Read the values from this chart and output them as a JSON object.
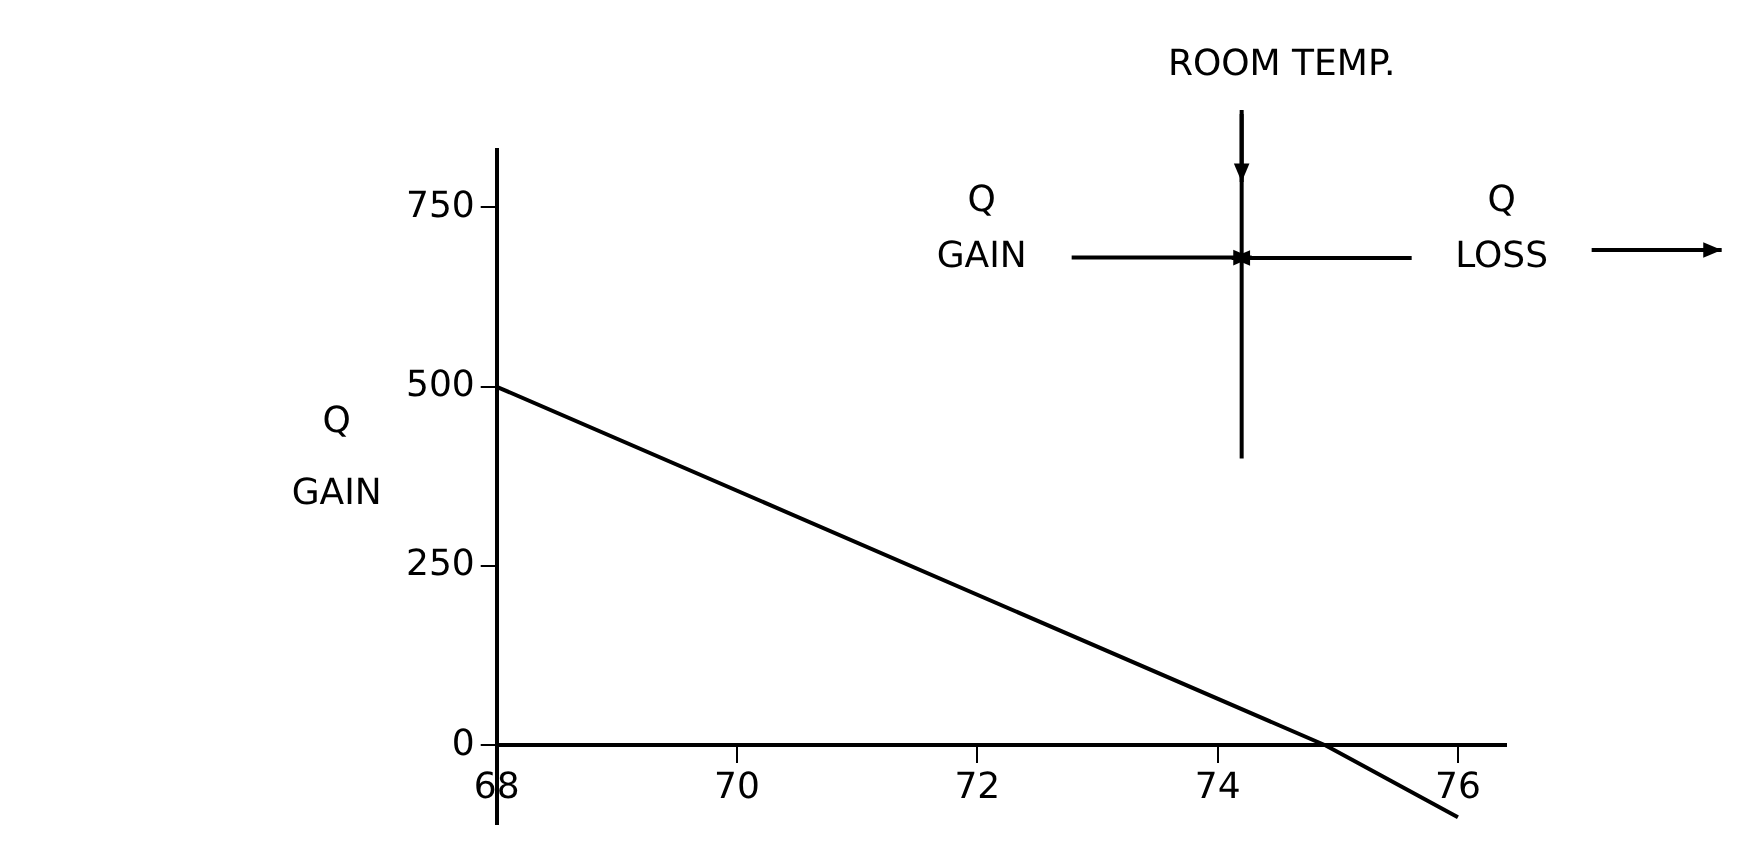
{
  "chart_data": {
    "type": "line",
    "ylabel": "Q GAIN",
    "x": [
      68,
      74.9,
      76
    ],
    "series": [
      {
        "color": "#000000",
        "values": [
          500,
          0,
          -100
        ]
      }
    ],
    "xlim": [
      68,
      76.4
    ],
    "ylim": [
      -110,
      830
    ],
    "xticks": [
      68,
      70,
      72,
      74,
      76
    ],
    "yticks": [
      0,
      250,
      500,
      750
    ],
    "ref_lines": [
      {
        "axis": "x",
        "value": 74.2,
        "label": "ROOM TEMP."
      }
    ],
    "annotations": [
      {
        "text": "Q GAIN",
        "x": 74.2,
        "y": 680
      },
      "Q LOSS"
    ],
    "grid": false,
    "legend": false,
    "marker": "none",
    "line_style": "solid"
  }
}
